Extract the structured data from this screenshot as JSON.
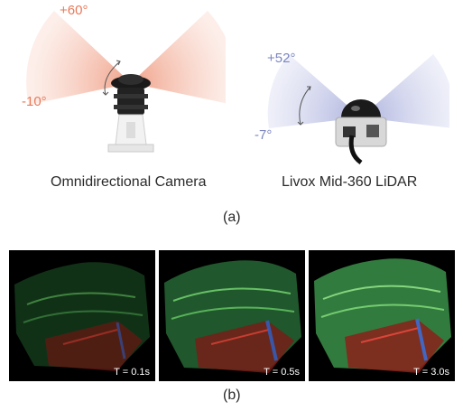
{
  "figure_a": {
    "camera": {
      "upper_angle": "+60°",
      "lower_angle": "-10°",
      "caption": "Omnidirectional Camera",
      "fov_color": "#f0a58e"
    },
    "lidar": {
      "upper_angle": "+52°",
      "lower_angle": "-7°",
      "caption": "Livox Mid-360 LiDAR",
      "fov_color": "#b4b9e0"
    },
    "label": "(a)"
  },
  "figure_b": {
    "panels": [
      {
        "time_label": "T = 0.1s"
      },
      {
        "time_label": "T = 0.5s"
      },
      {
        "time_label": "T = 3.0s"
      }
    ],
    "label": "(b)"
  }
}
